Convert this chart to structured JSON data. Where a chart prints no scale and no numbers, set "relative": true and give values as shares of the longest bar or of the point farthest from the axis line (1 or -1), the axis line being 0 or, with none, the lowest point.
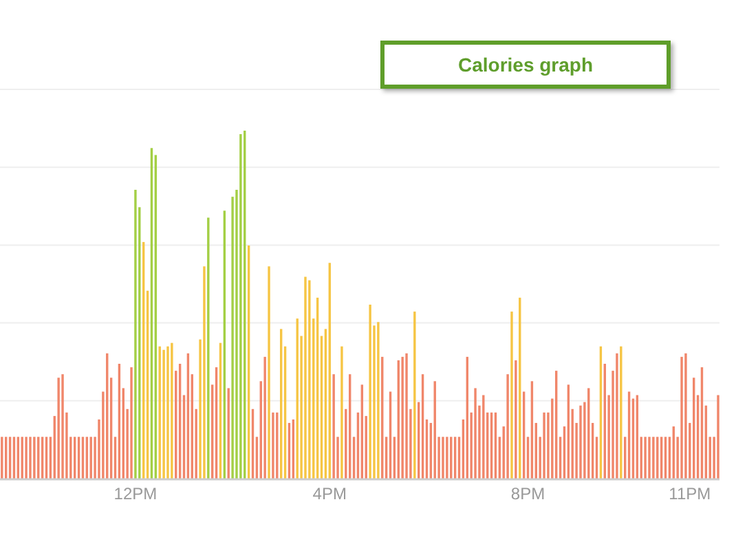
{
  "chart_data": {
    "type": "bar",
    "title": "Calories graph",
    "relative": true,
    "grid": "y",
    "categories": [
      null,
      null,
      null,
      null,
      null,
      null,
      null,
      null,
      null,
      null,
      null,
      null,
      null,
      null,
      null,
      null,
      null,
      null,
      null,
      null,
      null,
      null,
      null,
      null,
      null,
      null,
      null,
      null,
      null,
      null,
      null,
      null,
      null,
      "12PM",
      null,
      null,
      null,
      null,
      null,
      null,
      null,
      null,
      null,
      null,
      null,
      null,
      null,
      null,
      null,
      null,
      null,
      null,
      null,
      null,
      null,
      null,
      null,
      null,
      null,
      null,
      null,
      null,
      null,
      null,
      null,
      null,
      null,
      null,
      null,
      null,
      null,
      null,
      null,
      null,
      null,
      null,
      null,
      null,
      null,
      null,
      null,
      "4PM",
      null,
      null,
      null,
      null,
      null,
      null,
      null,
      null,
      null,
      null,
      null,
      null,
      null,
      null,
      null,
      null,
      null,
      null,
      null,
      null,
      null,
      null,
      null,
      null,
      null,
      null,
      null,
      null,
      null,
      null,
      null,
      null,
      null,
      null,
      null,
      null,
      null,
      null,
      null,
      null,
      null,
      null,
      null,
      null,
      null,
      null,
      null,
      null,
      "8PM",
      null,
      null,
      null,
      null,
      null,
      null,
      null,
      null,
      null,
      null,
      null,
      null,
      null,
      null,
      null,
      null,
      null,
      null,
      null,
      null,
      null,
      null,
      null,
      null,
      null,
      null,
      null,
      null,
      null,
      null,
      null,
      null,
      null,
      null,
      null,
      null,
      null,
      null,
      null,
      "11PM",
      null,
      null,
      null,
      null,
      null,
      null,
      null
    ],
    "values": [
      0.12,
      0.12,
      0.12,
      0.12,
      0.12,
      0.12,
      0.12,
      0.12,
      0.12,
      0.12,
      0.12,
      0.12,
      0.12,
      0.18,
      0.29,
      0.3,
      0.19,
      0.12,
      0.12,
      0.12,
      0.12,
      0.12,
      0.12,
      0.12,
      0.17,
      0.25,
      0.36,
      0.29,
      0.12,
      0.33,
      0.26,
      0.2,
      0.32,
      0.83,
      0.78,
      0.68,
      0.54,
      0.95,
      0.93,
      0.38,
      0.37,
      0.38,
      0.39,
      0.31,
      0.33,
      0.24,
      0.36,
      0.3,
      0.2,
      0.4,
      0.61,
      0.75,
      0.27,
      0.32,
      0.39,
      0.77,
      0.26,
      0.81,
      0.83,
      0.99,
      1,
      0.67,
      0.2,
      0.12,
      0.28,
      0.35,
      0.61,
      0.19,
      0.19,
      0.43,
      0.38,
      0.16,
      0.17,
      0.46,
      0.41,
      0.58,
      0.57,
      0.46,
      0.52,
      0.41,
      0.43,
      0.62,
      0.3,
      0.12,
      0.38,
      0.2,
      0.3,
      0.12,
      0.19,
      0.27,
      0.18,
      0.5,
      0.44,
      0.45,
      0.35,
      0.12,
      0.25,
      0.12,
      0.34,
      0.35,
      0.36,
      0.2,
      0.48,
      0.22,
      0.3,
      0.17,
      0.16,
      0.28,
      0.12,
      0.12,
      0.12,
      0.12,
      0.12,
      0.12,
      0.17,
      0.35,
      0.19,
      0.26,
      0.21,
      0.24,
      0.19,
      0.19,
      0.19,
      0.12,
      0.15,
      0.3,
      0.48,
      0.34,
      0.52,
      0.25,
      0.12,
      0.28,
      0.16,
      0.12,
      0.19,
      0.19,
      0.23,
      0.31,
      0.12,
      0.15,
      0.27,
      0.2,
      0.16,
      0.21,
      0.22,
      0.26,
      0.16,
      0.12,
      0.38,
      0.33,
      0.24,
      0.31,
      0.36,
      0.38,
      0.12,
      0.25,
      0.23,
      0.24,
      0.12,
      0.12,
      0.12,
      0.12,
      0.12,
      0.12,
      0.12,
      0.12,
      0.15,
      0.12,
      0.35,
      0.36,
      0.16,
      0.29,
      0.24,
      0.32,
      0.21,
      0.12,
      0.12,
      0.24
    ],
    "colors": [
      "#f0866a",
      "#f0866a",
      "#f0866a",
      "#f0866a",
      "#f0866a",
      "#f0866a",
      "#f0866a",
      "#f0866a",
      "#f0866a",
      "#f0866a",
      "#f0866a",
      "#f0866a",
      "#f0866a",
      "#f0866a",
      "#f0866a",
      "#f0866a",
      "#f0866a",
      "#f0866a",
      "#f0866a",
      "#f0866a",
      "#f0866a",
      "#f0866a",
      "#f0866a",
      "#f0866a",
      "#f0866a",
      "#f0866a",
      "#f0866a",
      "#f0866a",
      "#f0866a",
      "#f0866a",
      "#f0866a",
      "#f0866a",
      "#f0866a",
      "#a3cf45",
      "#a3cf45",
      "#f6c544",
      "#f6c544",
      "#a3cf45",
      "#a3cf45",
      "#f6c544",
      "#f6c544",
      "#f6c544",
      "#f6c544",
      "#f0866a",
      "#f0866a",
      "#f0866a",
      "#f0866a",
      "#f0866a",
      "#f0866a",
      "#f6c544",
      "#f6c544",
      "#a3cf45",
      "#f0866a",
      "#f0866a",
      "#f6c544",
      "#a3cf45",
      "#f0866a",
      "#a3cf45",
      "#a3cf45",
      "#a3cf45",
      "#a3cf45",
      "#f6c544",
      "#f0866a",
      "#f0866a",
      "#f0866a",
      "#f0866a",
      "#f6c544",
      "#f0866a",
      "#f0866a",
      "#f6c544",
      "#f6c544",
      "#f0866a",
      "#f0866a",
      "#f6c544",
      "#f6c544",
      "#f6c544",
      "#f6c544",
      "#f6c544",
      "#f6c544",
      "#f6c544",
      "#f6c544",
      "#f6c544",
      "#f0866a",
      "#f0866a",
      "#f6c544",
      "#f0866a",
      "#f0866a",
      "#f0866a",
      "#f0866a",
      "#f0866a",
      "#f0866a",
      "#f6c544",
      "#f6c544",
      "#f6c544",
      "#f0866a",
      "#f0866a",
      "#f0866a",
      "#f0866a",
      "#f0866a",
      "#f0866a",
      "#f0866a",
      "#f0866a",
      "#f6c544",
      "#f0866a",
      "#f0866a",
      "#f0866a",
      "#f0866a",
      "#f0866a",
      "#f0866a",
      "#f0866a",
      "#f0866a",
      "#f0866a",
      "#f0866a",
      "#f0866a",
      "#f0866a",
      "#f0866a",
      "#f0866a",
      "#f0866a",
      "#f0866a",
      "#f0866a",
      "#f0866a",
      "#f0866a",
      "#f0866a",
      "#f0866a",
      "#f0866a",
      "#f0866a",
      "#f6c544",
      "#f0866a",
      "#f6c544",
      "#f0866a",
      "#f0866a",
      "#f0866a",
      "#f0866a",
      "#f0866a",
      "#f0866a",
      "#f0866a",
      "#f0866a",
      "#f0866a",
      "#f0866a",
      "#f0866a",
      "#f0866a",
      "#f0866a",
      "#f0866a",
      "#f0866a",
      "#f0866a",
      "#f0866a",
      "#f0866a",
      "#f0866a",
      "#f6c544",
      "#f0866a",
      "#f0866a",
      "#f0866a",
      "#f0866a",
      "#f6c544",
      "#f0866a",
      "#f0866a",
      "#f0866a",
      "#f0866a",
      "#f0866a",
      "#f0866a",
      "#f0866a",
      "#f0866a",
      "#f0866a",
      "#f0866a",
      "#f0866a",
      "#f0866a",
      "#f0866a",
      "#f0866a",
      "#f0866a",
      "#f0866a",
      "#f0866a",
      "#f0866a",
      "#f0866a",
      "#f0866a",
      "#f0866a",
      "#f0866a",
      "#f0866a",
      "#f0866a"
    ]
  }
}
